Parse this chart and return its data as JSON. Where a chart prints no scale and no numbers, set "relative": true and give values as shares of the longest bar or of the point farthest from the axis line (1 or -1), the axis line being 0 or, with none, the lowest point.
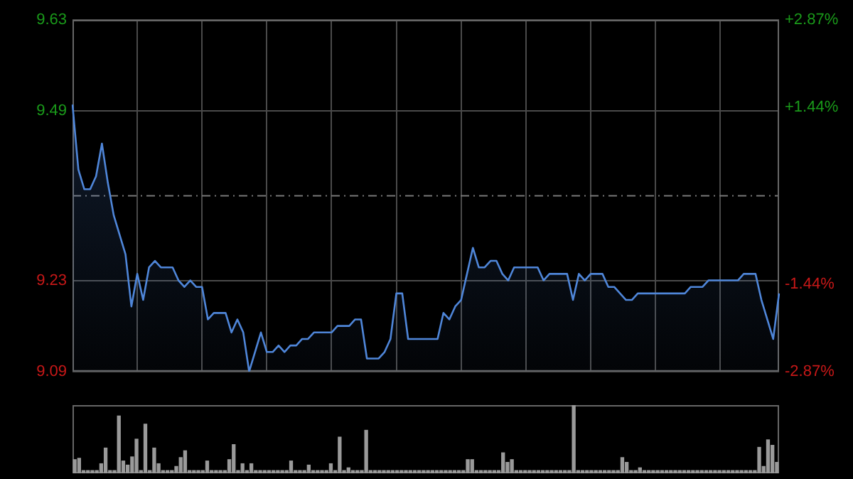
{
  "chart_data": [
    {
      "type": "area",
      "categories": [
        null,
        null,
        null,
        null,
        null,
        null,
        null,
        null,
        null,
        null,
        null,
        null,
        null,
        null,
        null,
        null,
        null,
        null,
        null,
        null,
        null,
        null,
        null,
        null,
        null,
        null,
        null,
        null,
        null,
        null,
        null,
        null,
        null,
        null,
        null,
        null,
        null,
        null,
        null,
        null,
        null,
        null,
        null,
        null,
        null,
        null,
        null,
        null,
        null,
        null,
        null,
        null,
        null,
        null,
        null,
        null,
        null,
        null,
        null,
        null,
        null,
        null,
        null,
        null,
        null,
        null,
        null,
        null,
        null,
        null,
        null,
        null,
        null,
        null,
        null,
        null,
        null,
        null,
        null,
        null,
        null,
        null,
        null,
        null,
        null,
        null,
        null,
        null,
        null,
        null,
        null,
        null,
        null,
        null,
        null,
        null,
        null,
        null,
        null,
        null,
        null,
        null,
        null,
        null,
        null,
        null,
        null,
        null,
        null,
        null,
        null,
        null,
        null,
        null,
        null,
        null,
        null,
        null,
        null,
        null,
        null
      ],
      "series": [
        {
          "color": "#4f86d9",
          "values": [
            9.5,
            9.4,
            9.37,
            9.37,
            9.39,
            9.44,
            9.38,
            9.33,
            9.3,
            9.27,
            9.19,
            9.24,
            9.2,
            9.25,
            9.26,
            9.25,
            9.25,
            9.25,
            9.23,
            9.22,
            9.23,
            9.22,
            9.22,
            9.17,
            9.18,
            9.18,
            9.18,
            9.15,
            9.17,
            9.15,
            9.09,
            9.12,
            9.15,
            9.12,
            9.12,
            9.13,
            9.12,
            9.13,
            9.13,
            9.14,
            9.14,
            9.15,
            9.15,
            9.15,
            9.15,
            9.16,
            9.16,
            9.16,
            9.17,
            9.17,
            9.11,
            9.11,
            9.11,
            9.12,
            9.14,
            9.21,
            9.21,
            9.14,
            9.14,
            9.14,
            9.14,
            9.14,
            9.14,
            9.18,
            9.17,
            9.19,
            9.2,
            9.24,
            9.28,
            9.25,
            9.25,
            9.26,
            9.26,
            9.24,
            9.23,
            9.25,
            9.25,
            9.25,
            9.25,
            9.25,
            9.23,
            9.24,
            9.24,
            9.24,
            9.24,
            9.2,
            9.24,
            9.23,
            9.24,
            9.24,
            9.24,
            9.22,
            9.22,
            9.21,
            9.2,
            9.2,
            9.21,
            9.21,
            9.21,
            9.21,
            9.21,
            9.21,
            9.21,
            9.21,
            9.21,
            9.22,
            9.22,
            9.22,
            9.23,
            9.23,
            9.23,
            9.23,
            9.23,
            9.23,
            9.24,
            9.24,
            9.24,
            9.2,
            9.17,
            9.14,
            9.21
          ]
        }
      ],
      "ylim": [
        9.09,
        9.63
      ],
      "yticks": [
        9.09,
        9.23,
        9.49,
        9.63
      ],
      "y2lim": [
        -2.87,
        2.87
      ],
      "y2ticks": [
        {
          "value": -2.87,
          "label": "-2.87%"
        },
        {
          "value": -1.44,
          "label": "-1.44%"
        },
        {
          "value": 1.44,
          "label": "+1.44%"
        },
        {
          "value": 2.87,
          "label": "+2.87%"
        }
      ],
      "ref_lines": [
        {
          "axis": "y",
          "value": 9.36,
          "color": "#777777",
          "line_style": "dashed"
        }
      ],
      "tick_labels": "y",
      "grid": true,
      "legend": false
    },
    {
      "type": "bar",
      "relative": true,
      "color": "#9a9a9a",
      "categories": [
        null,
        null,
        null,
        null,
        null,
        null,
        null,
        null,
        null,
        null,
        null,
        null,
        null,
        null,
        null,
        null,
        null,
        null,
        null,
        null,
        null,
        null,
        null,
        null,
        null,
        null,
        null,
        null,
        null,
        null,
        null,
        null,
        null,
        null,
        null,
        null,
        null,
        null,
        null,
        null,
        null,
        null,
        null,
        null,
        null,
        null,
        null,
        null,
        null,
        null,
        null,
        null,
        null,
        null,
        null,
        null,
        null,
        null,
        null,
        null,
        null,
        null,
        null,
        null,
        null,
        null,
        null,
        null,
        null,
        null,
        null,
        null,
        null,
        null,
        null,
        null,
        null,
        null,
        null,
        null,
        null,
        null,
        null,
        null,
        null,
        null,
        null,
        null,
        null,
        null,
        null,
        null,
        null,
        null,
        null,
        null,
        null,
        null,
        null,
        null,
        null,
        null,
        null,
        null,
        null,
        null,
        null,
        null,
        null,
        null,
        null,
        null,
        null,
        null,
        null,
        null,
        null,
        null,
        null,
        null,
        null,
        null,
        null,
        null,
        null,
        null,
        null,
        null,
        null,
        null,
        null,
        null,
        null,
        null,
        null,
        null,
        null,
        null,
        null,
        null,
        null,
        null,
        null,
        null,
        null,
        null,
        null,
        null,
        null,
        null,
        null,
        null,
        null,
        null,
        null,
        null,
        null,
        null,
        null,
        null
      ],
      "values": [
        0.2,
        0.22,
        0.04,
        0.04,
        0.04,
        0.04,
        0.14,
        0.37,
        0.04,
        0.04,
        0.84,
        0.18,
        0.12,
        0.24,
        0.5,
        0.04,
        0.72,
        0.04,
        0.37,
        0.14,
        0.04,
        0.04,
        0.04,
        0.1,
        0.23,
        0.33,
        0.04,
        0.04,
        0.04,
        0.04,
        0.18,
        0.04,
        0.04,
        0.04,
        0.04,
        0.2,
        0.42,
        0.04,
        0.14,
        0.04,
        0.14,
        0.04,
        0.04,
        0.04,
        0.04,
        0.04,
        0.04,
        0.04,
        0.04,
        0.18,
        0.04,
        0.04,
        0.04,
        0.12,
        0.04,
        0.04,
        0.04,
        0.04,
        0.14,
        0.04,
        0.53,
        0.04,
        0.08,
        0.04,
        0.04,
        0.04,
        0.63,
        0.04,
        0.04,
        0.04,
        0.04,
        0.04,
        0.04,
        0.04,
        0.04,
        0.04,
        0.04,
        0.04,
        0.04,
        0.04,
        0.04,
        0.04,
        0.04,
        0.04,
        0.04,
        0.04,
        0.04,
        0.04,
        0.04,
        0.2,
        0.2,
        0.04,
        0.04,
        0.04,
        0.04,
        0.04,
        0.04,
        0.3,
        0.16,
        0.2,
        0.04,
        0.04,
        0.04,
        0.04,
        0.04,
        0.04,
        0.04,
        0.04,
        0.04,
        0.04,
        0.04,
        0.04,
        0.04,
        1,
        0.04,
        0.04,
        0.04,
        0.04,
        0.04,
        0.04,
        0.04,
        0.04,
        0.04,
        0.04,
        0.23,
        0.16,
        0.04,
        0.04,
        0.08,
        0.04,
        0.04,
        0.04,
        0.04,
        0.04,
        0.04,
        0.04,
        0.04,
        0.04,
        0.04,
        0.04,
        0.04,
        0.04,
        0.04,
        0.04,
        0.04,
        0.04,
        0.04,
        0.04,
        0.04,
        0.04,
        0.04,
        0.04,
        0.04,
        0.04,
        0.04,
        0.38,
        0.1,
        0.49,
        0.41,
        0.16
      ],
      "tick_labels": false,
      "legend": false
    }
  ]
}
